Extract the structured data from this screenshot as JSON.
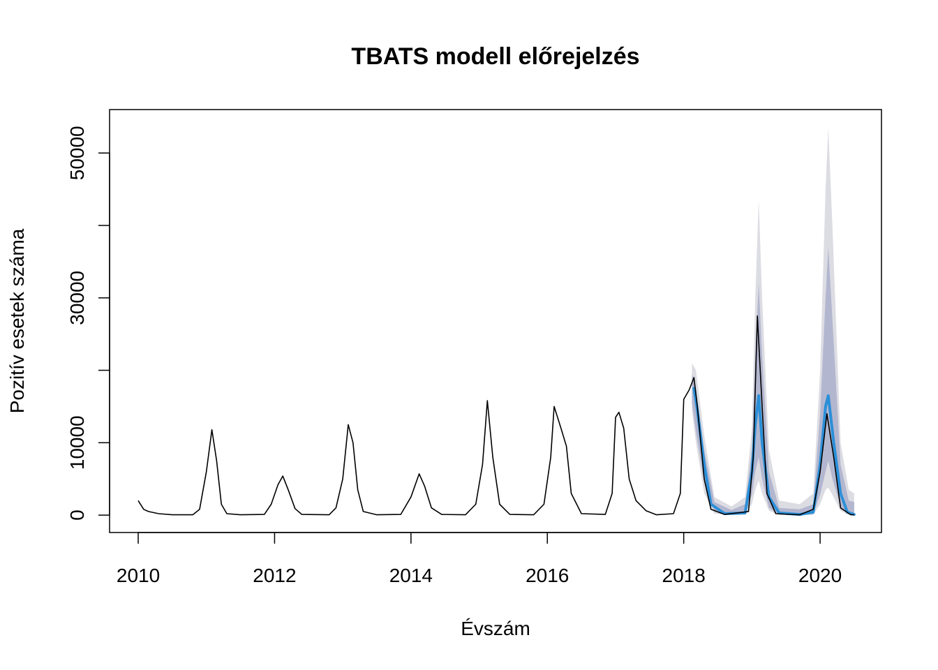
{
  "chart_data": {
    "type": "line",
    "title": "TBATS modell előrejelzés",
    "xlabel": "Évszám",
    "ylabel": "Pozitív esetek száma",
    "xlim": [
      2009.58,
      2020.9
    ],
    "ylim": [
      -2400,
      56000
    ],
    "x_ticks": [
      2010,
      2012,
      2014,
      2016,
      2018,
      2020
    ],
    "y_ticks": [
      0,
      10000,
      20000,
      30000,
      40000,
      50000
    ],
    "y_tick_labels": [
      "0",
      "10000",
      "",
      "30000",
      "",
      "50000"
    ],
    "grid": false,
    "legend": "none",
    "colors": {
      "observed": "#000000",
      "forecast_mean": "#2b8fd8",
      "band_80": "#b3b6cf",
      "band_95": "#dcdce3"
    },
    "series": [
      {
        "role": "observed",
        "points": [
          [
            2010.0,
            2000
          ],
          [
            2010.08,
            800
          ],
          [
            2010.15,
            500
          ],
          [
            2010.3,
            200
          ],
          [
            2010.5,
            50
          ],
          [
            2010.8,
            50
          ],
          [
            2010.9,
            800
          ],
          [
            2011.0,
            6000
          ],
          [
            2011.08,
            11800
          ],
          [
            2011.15,
            7500
          ],
          [
            2011.22,
            1500
          ],
          [
            2011.3,
            200
          ],
          [
            2011.5,
            50
          ],
          [
            2011.85,
            100
          ],
          [
            2011.95,
            1500
          ],
          [
            2012.05,
            4200
          ],
          [
            2012.12,
            5400
          ],
          [
            2012.2,
            3500
          ],
          [
            2012.3,
            900
          ],
          [
            2012.4,
            100
          ],
          [
            2012.8,
            50
          ],
          [
            2012.9,
            1000
          ],
          [
            2013.0,
            5000
          ],
          [
            2013.08,
            12500
          ],
          [
            2013.15,
            10000
          ],
          [
            2013.22,
            3500
          ],
          [
            2013.3,
            500
          ],
          [
            2013.5,
            50
          ],
          [
            2013.85,
            100
          ],
          [
            2014.0,
            2500
          ],
          [
            2014.12,
            5700
          ],
          [
            2014.2,
            4000
          ],
          [
            2014.3,
            1000
          ],
          [
            2014.45,
            100
          ],
          [
            2014.8,
            50
          ],
          [
            2014.95,
            1500
          ],
          [
            2015.05,
            7000
          ],
          [
            2015.12,
            15800
          ],
          [
            2015.2,
            8000
          ],
          [
            2015.3,
            1500
          ],
          [
            2015.45,
            100
          ],
          [
            2015.8,
            50
          ],
          [
            2015.95,
            1500
          ],
          [
            2016.05,
            8000
          ],
          [
            2016.1,
            15000
          ],
          [
            2016.2,
            12000
          ],
          [
            2016.28,
            9500
          ],
          [
            2016.35,
            3000
          ],
          [
            2016.5,
            200
          ],
          [
            2016.85,
            100
          ],
          [
            2016.95,
            3000
          ],
          [
            2017.0,
            13500
          ],
          [
            2017.05,
            14200
          ],
          [
            2017.12,
            12000
          ],
          [
            2017.2,
            5000
          ],
          [
            2017.3,
            2000
          ],
          [
            2017.45,
            600
          ],
          [
            2017.6,
            50
          ],
          [
            2017.85,
            200
          ],
          [
            2017.95,
            3000
          ],
          [
            2018.0,
            16000
          ],
          [
            2018.08,
            17300
          ],
          [
            2018.15,
            19000
          ],
          [
            2018.2,
            15000
          ],
          [
            2018.3,
            5000
          ],
          [
            2018.4,
            800
          ],
          [
            2018.6,
            100
          ],
          [
            2018.95,
            500
          ],
          [
            2019.02,
            8000
          ],
          [
            2019.08,
            27500
          ],
          [
            2019.15,
            15000
          ],
          [
            2019.22,
            3000
          ],
          [
            2019.35,
            200
          ],
          [
            2019.7,
            50
          ],
          [
            2019.9,
            800
          ],
          [
            2020.0,
            6000
          ],
          [
            2020.1,
            14000
          ],
          [
            2020.2,
            8000
          ],
          [
            2020.3,
            1000
          ],
          [
            2020.45,
            50
          ],
          [
            2020.5,
            50
          ]
        ]
      },
      {
        "role": "forecast_mean",
        "points": [
          [
            2018.15,
            17500
          ],
          [
            2018.2,
            14500
          ],
          [
            2018.3,
            7000
          ],
          [
            2018.4,
            1500
          ],
          [
            2018.6,
            200
          ],
          [
            2018.9,
            300
          ],
          [
            2019.0,
            6000
          ],
          [
            2019.05,
            12500
          ],
          [
            2019.1,
            16500
          ],
          [
            2019.15,
            10000
          ],
          [
            2019.25,
            2500
          ],
          [
            2019.4,
            300
          ],
          [
            2019.7,
            100
          ],
          [
            2019.9,
            400
          ],
          [
            2020.0,
            7000
          ],
          [
            2020.08,
            15000
          ],
          [
            2020.12,
            16500
          ],
          [
            2020.2,
            10000
          ],
          [
            2020.3,
            3000
          ],
          [
            2020.4,
            400
          ],
          [
            2020.5,
            100
          ]
        ]
      },
      {
        "role": "band_95",
        "upper": [
          [
            2018.12,
            21000
          ],
          [
            2018.18,
            20000
          ],
          [
            2018.3,
            11000
          ],
          [
            2018.45,
            2500
          ],
          [
            2018.7,
            1200
          ],
          [
            2018.9,
            2500
          ],
          [
            2019.0,
            12000
          ],
          [
            2019.05,
            30000
          ],
          [
            2019.1,
            43500
          ],
          [
            2019.15,
            30000
          ],
          [
            2019.25,
            9000
          ],
          [
            2019.4,
            2000
          ],
          [
            2019.7,
            1500
          ],
          [
            2019.9,
            3000
          ],
          [
            2020.0,
            20000
          ],
          [
            2020.08,
            45000
          ],
          [
            2020.12,
            53500
          ],
          [
            2020.18,
            40000
          ],
          [
            2020.3,
            10000
          ],
          [
            2020.42,
            3500
          ],
          [
            2020.5,
            3000
          ]
        ],
        "lower": [
          [
            2018.12,
            14500
          ],
          [
            2018.18,
            10000
          ],
          [
            2018.3,
            3000
          ],
          [
            2018.45,
            200
          ],
          [
            2018.7,
            0
          ],
          [
            2018.9,
            50
          ],
          [
            2019.0,
            1500
          ],
          [
            2019.05,
            3500
          ],
          [
            2019.1,
            4800
          ],
          [
            2019.15,
            3000
          ],
          [
            2019.25,
            600
          ],
          [
            2019.4,
            50
          ],
          [
            2019.7,
            0
          ],
          [
            2019.9,
            50
          ],
          [
            2020.0,
            1500
          ],
          [
            2020.08,
            3500
          ],
          [
            2020.12,
            3800
          ],
          [
            2020.18,
            2800
          ],
          [
            2020.3,
            600
          ],
          [
            2020.42,
            50
          ],
          [
            2020.5,
            0
          ]
        ]
      },
      {
        "role": "band_80",
        "upper": [
          [
            2018.12,
            19500
          ],
          [
            2018.18,
            17500
          ],
          [
            2018.3,
            9000
          ],
          [
            2018.45,
            1800
          ],
          [
            2018.7,
            700
          ],
          [
            2018.9,
            1500
          ],
          [
            2019.0,
            9000
          ],
          [
            2019.05,
            22000
          ],
          [
            2019.1,
            32000
          ],
          [
            2019.15,
            22000
          ],
          [
            2019.25,
            6000
          ],
          [
            2019.4,
            1000
          ],
          [
            2019.7,
            800
          ],
          [
            2019.9,
            1500
          ],
          [
            2020.0,
            14000
          ],
          [
            2020.08,
            30000
          ],
          [
            2020.12,
            37000
          ],
          [
            2020.18,
            27000
          ],
          [
            2020.3,
            7000
          ],
          [
            2020.42,
            2000
          ],
          [
            2020.5,
            1800
          ]
        ],
        "lower": [
          [
            2018.12,
            15500
          ],
          [
            2018.18,
            11500
          ],
          [
            2018.3,
            4500
          ],
          [
            2018.45,
            500
          ],
          [
            2018.7,
            50
          ],
          [
            2018.9,
            150
          ],
          [
            2019.0,
            2800
          ],
          [
            2019.05,
            6000
          ],
          [
            2019.1,
            8000
          ],
          [
            2019.15,
            5000
          ],
          [
            2019.25,
            1000
          ],
          [
            2019.4,
            100
          ],
          [
            2019.7,
            50
          ],
          [
            2019.9,
            150
          ],
          [
            2020.0,
            2800
          ],
          [
            2020.08,
            6000
          ],
          [
            2020.12,
            7500
          ],
          [
            2020.18,
            5000
          ],
          [
            2020.3,
            1200
          ],
          [
            2020.42,
            150
          ],
          [
            2020.5,
            100
          ]
        ]
      }
    ]
  }
}
